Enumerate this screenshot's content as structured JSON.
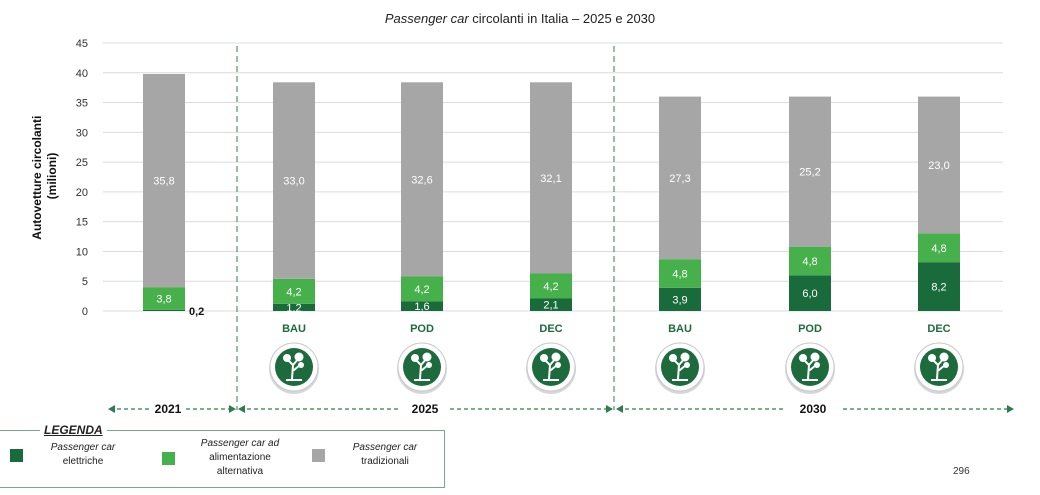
{
  "title_prefix": "Passenger car",
  "title_rest": " circolanti in Italia – 2025 e 2030",
  "page_number": "296",
  "legend": {
    "title": "LEGENDA",
    "items": [
      {
        "line1": "Passenger car",
        "line2": "elettriche",
        "line3": "",
        "color": "#1a6b3c"
      },
      {
        "line1": "Passenger car ad",
        "line2": "alimentazione",
        "line3": "alternativa",
        "color": "#46b04a"
      },
      {
        "line1": "Passenger car",
        "line2": "tradizionali",
        "line3": "",
        "color": "#a6a6a6"
      }
    ]
  },
  "chart_data": {
    "type": "bar",
    "stacked": true,
    "title": "Passenger car circolanti in Italia – 2025 e 2030",
    "ylabel": "Autovetture circolanti (milioni)",
    "ylabel_lines": [
      "Autovetture circolanti",
      "(milioni)"
    ],
    "ylim": [
      0,
      45
    ],
    "yticks": [
      0,
      5,
      10,
      15,
      20,
      25,
      30,
      35,
      40,
      45
    ],
    "grid": true,
    "categories": [
      "2021",
      "BAU",
      "POD",
      "DEC",
      "BAU",
      "POD",
      "DEC"
    ],
    "periods": [
      {
        "label": "2021",
        "categories": [
          0
        ]
      },
      {
        "label": "2025",
        "categories": [
          1,
          2,
          3
        ]
      },
      {
        "label": "2030",
        "categories": [
          4,
          5,
          6
        ]
      }
    ],
    "scenario_icons": [
      "tree-icon",
      "tree-icon",
      "tree-icon",
      "tree-icon",
      "tree-icon",
      "tree-icon"
    ],
    "series": [
      {
        "name": "Passenger car elettriche",
        "color": "#1a6b3c",
        "values": [
          0.2,
          1.2,
          1.6,
          2.1,
          3.9,
          6.0,
          8.2
        ],
        "labels": [
          "0,2",
          "1,2",
          "1,6",
          "2,1",
          "3,9",
          "6,0",
          "8,2"
        ]
      },
      {
        "name": "Passenger car ad alimentazione alternativa",
        "color": "#46b04a",
        "values": [
          3.8,
          4.2,
          4.2,
          4.2,
          4.8,
          4.8,
          4.8
        ],
        "labels": [
          "3,8",
          "4,2",
          "4,2",
          "4,2",
          "4,8",
          "4,8",
          "4,8"
        ]
      },
      {
        "name": "Passenger car tradizionali",
        "color": "#a6a6a6",
        "values": [
          35.8,
          33.0,
          32.6,
          32.1,
          27.3,
          25.2,
          23.0
        ],
        "labels": [
          "35,8",
          "33,0",
          "32,6",
          "32,1",
          "27,3",
          "25,2",
          "23,0"
        ]
      }
    ]
  }
}
